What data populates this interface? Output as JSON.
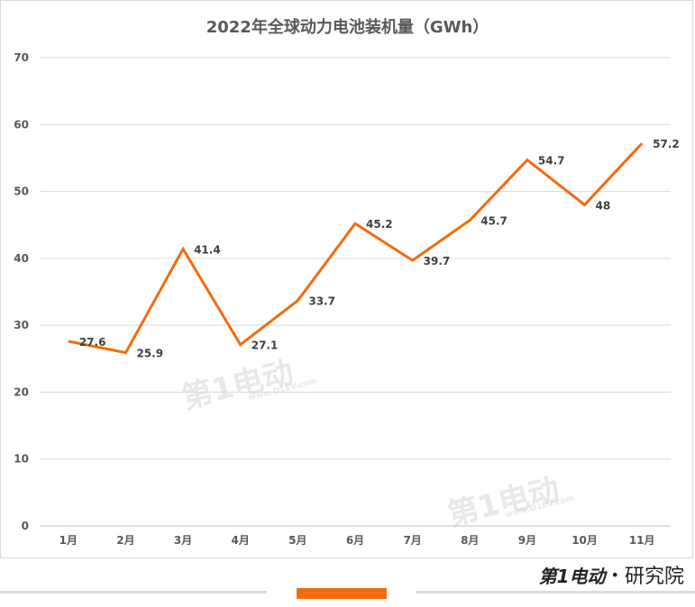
{
  "chart_data": {
    "type": "line",
    "title": "2022年全球动力电池装机量（GWh）",
    "categories": [
      "1月",
      "2月",
      "3月",
      "4月",
      "5月",
      "6月",
      "7月",
      "8月",
      "9月",
      "10月",
      "11月"
    ],
    "series": [
      {
        "values": [
          27.6,
          25.9,
          41.4,
          27.1,
          33.7,
          45.2,
          39.7,
          45.7,
          54.7,
          48,
          57.2
        ]
      }
    ],
    "data_labels": [
      "27.6",
      "25.9",
      "41.4",
      "27.1",
      "33.7",
      "45.2",
      "39.7",
      "45.7",
      "54.7",
      "48",
      "57.2"
    ],
    "ylim": [
      0,
      70
    ],
    "yticks": [
      0,
      10,
      20,
      30,
      40,
      50,
      60,
      70
    ],
    "grid": true,
    "line_color": "#f26b0f"
  },
  "watermark": {
    "text": "第1电动",
    "url": "www.D1EV.com"
  },
  "footer": {
    "brand_logo": "第1电动",
    "separator": "•",
    "brand_suffix": "研究院"
  }
}
